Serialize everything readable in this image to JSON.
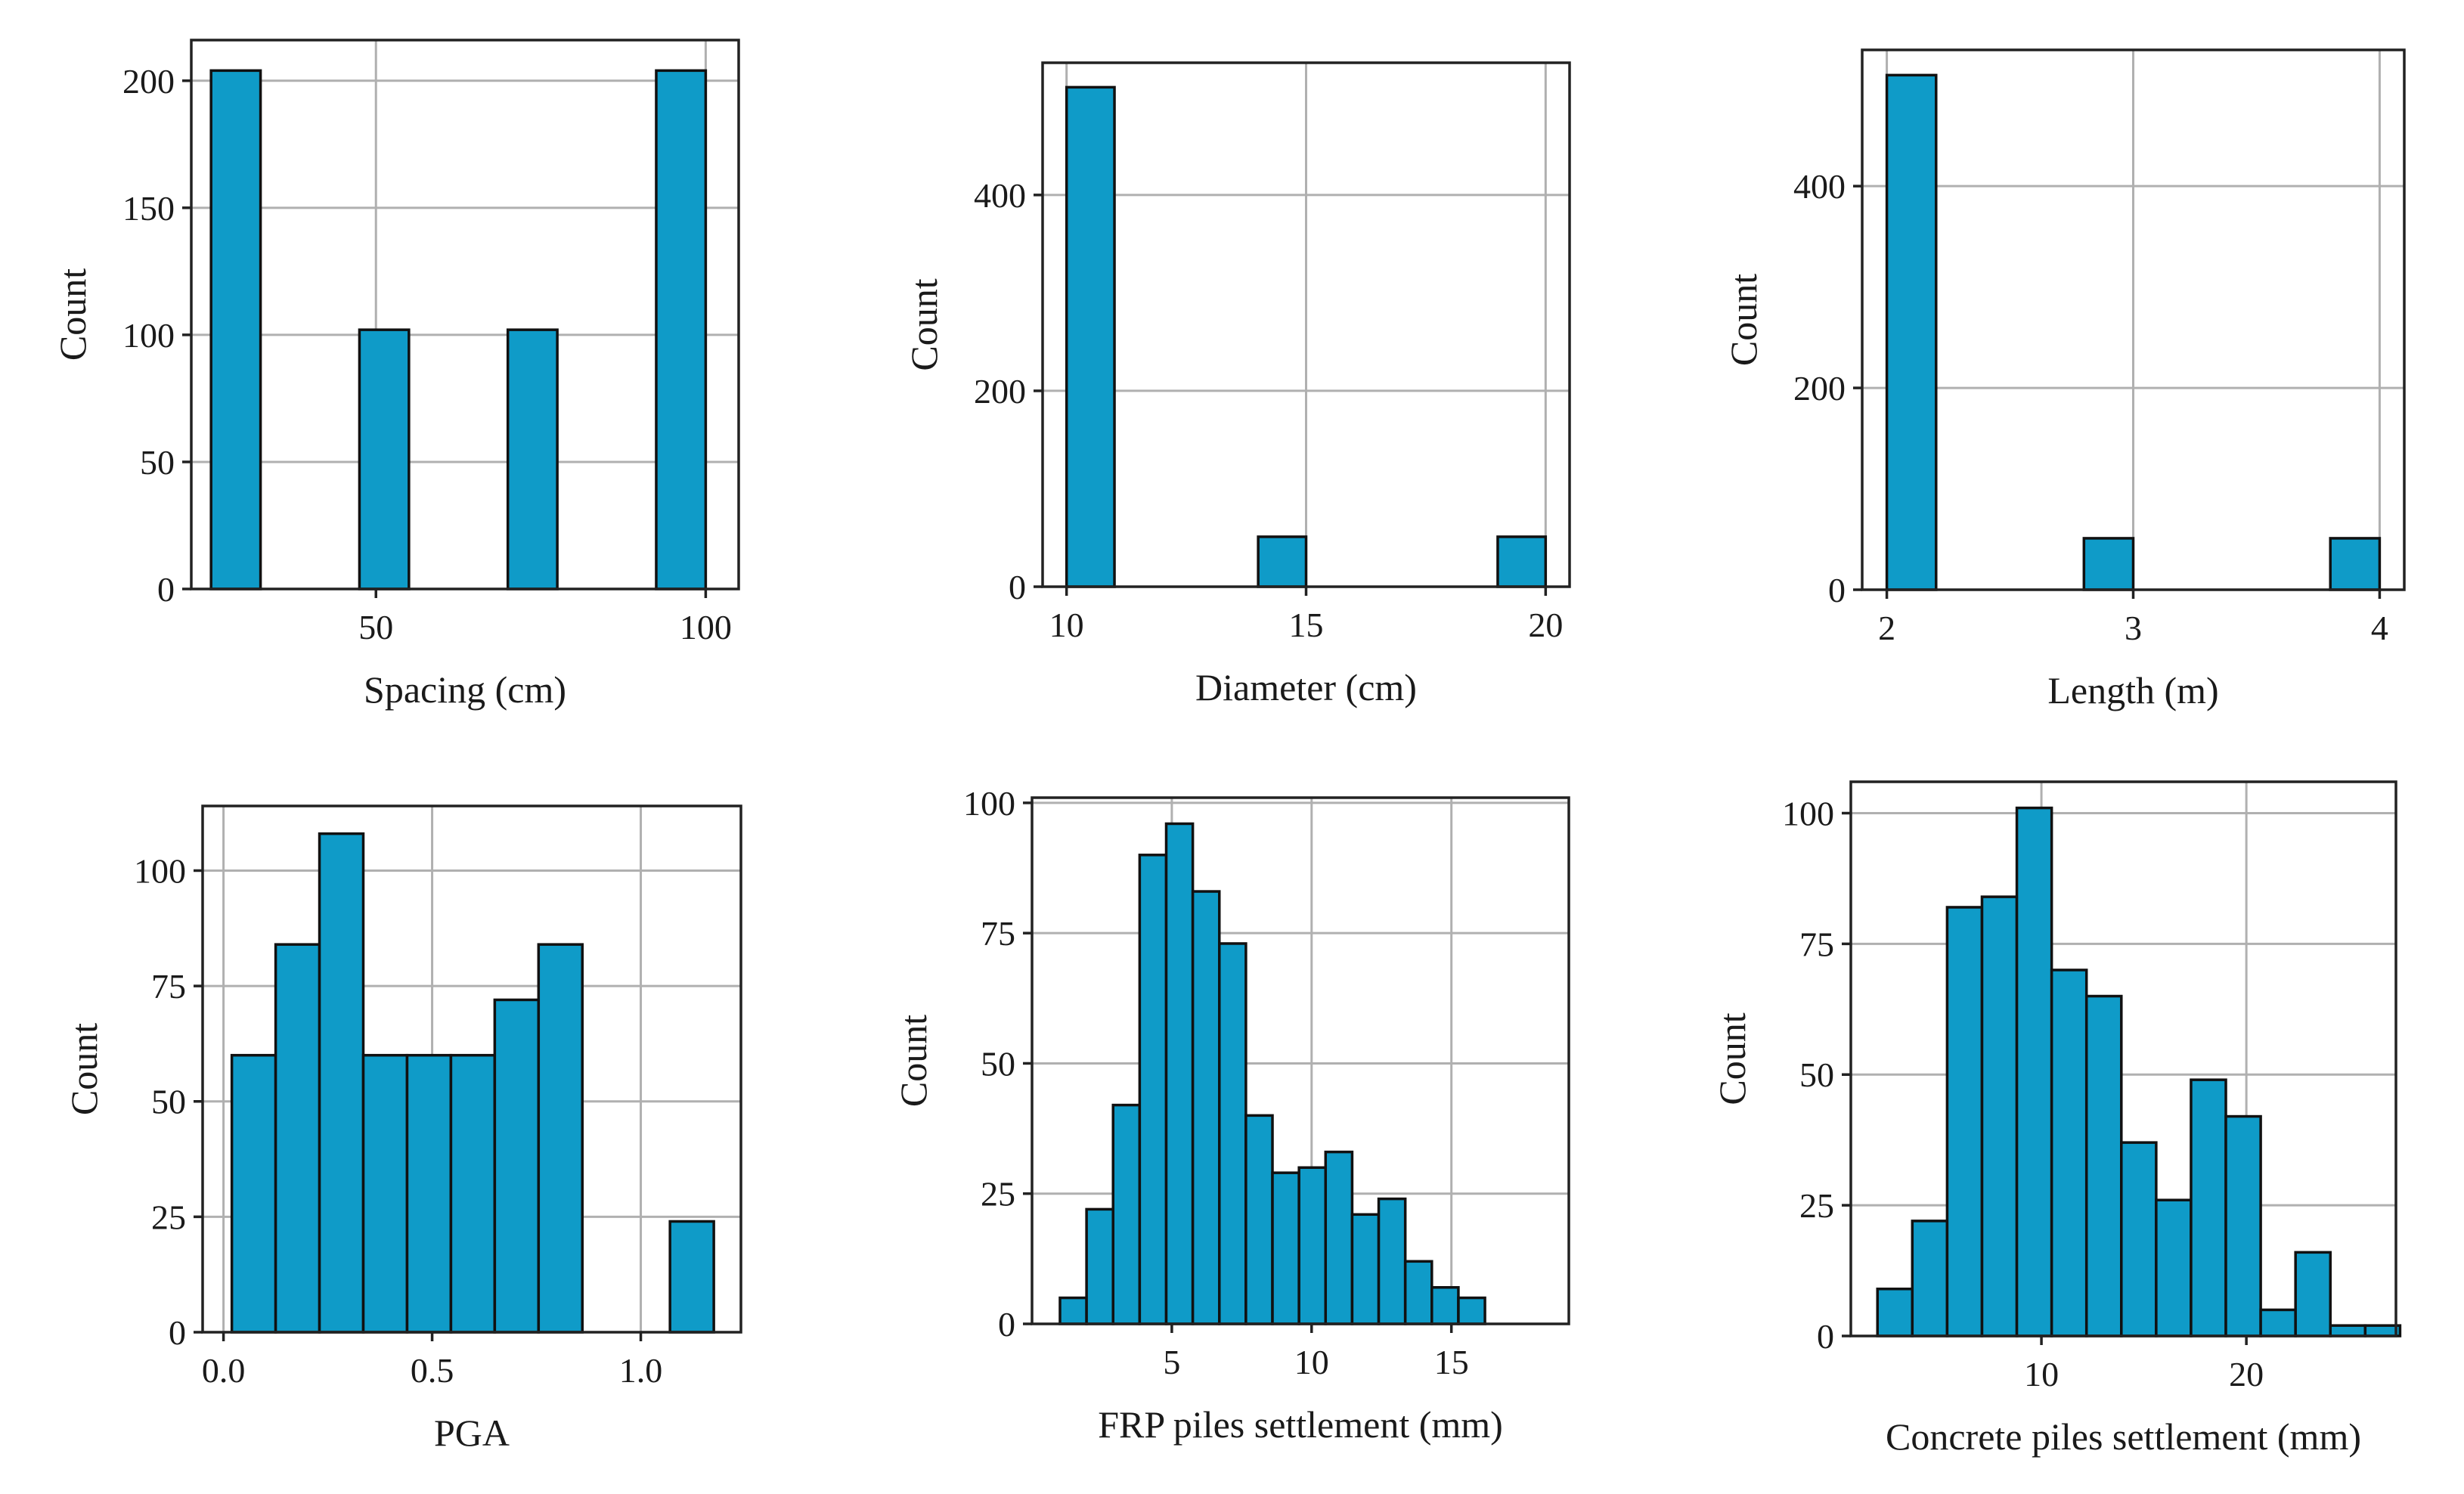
{
  "colors": {
    "bar": "#0f9bc8",
    "edge": "#111111",
    "grid": "#b0b0b0"
  },
  "chart_data": [
    {
      "type": "bar",
      "xlabel": "Spacing (cm)",
      "ylabel": "Count",
      "xlim": [
        22,
        105
      ],
      "ylim": [
        0,
        216
      ],
      "xticks": [
        50,
        100
      ],
      "yticks": [
        0,
        50,
        100,
        150,
        200
      ],
      "grid": true,
      "bins": [
        {
          "x0": 25,
          "x1": 32.5,
          "count": 204
        },
        {
          "x0": 47.5,
          "x1": 55,
          "count": 102
        },
        {
          "x0": 70,
          "x1": 77.5,
          "count": 102
        },
        {
          "x0": 92.5,
          "x1": 100,
          "count": 204
        }
      ]
    },
    {
      "type": "bar",
      "xlabel": "Diameter (cm)",
      "ylabel": "Count",
      "xlim": [
        9.5,
        20.5
      ],
      "ylim": [
        0,
        535
      ],
      "xticks": [
        10,
        15,
        20
      ],
      "yticks": [
        0,
        200,
        400
      ],
      "grid": true,
      "bins": [
        {
          "x0": 10,
          "x1": 11,
          "count": 510
        },
        {
          "x0": 14,
          "x1": 15,
          "count": 51
        },
        {
          "x0": 19,
          "x1": 20,
          "count": 51
        }
      ]
    },
    {
      "type": "bar",
      "xlabel": "Length (m)",
      "ylabel": "Count",
      "xlim": [
        1.9,
        4.1
      ],
      "ylim": [
        0,
        535
      ],
      "xticks": [
        2,
        3,
        4
      ],
      "yticks": [
        0,
        200,
        400
      ],
      "grid": true,
      "bins": [
        {
          "x0": 2.0,
          "x1": 2.2,
          "count": 510
        },
        {
          "x0": 2.8,
          "x1": 3.0,
          "count": 51
        },
        {
          "x0": 3.8,
          "x1": 4.0,
          "count": 51
        }
      ]
    },
    {
      "type": "bar",
      "xlabel": "PGA",
      "ylabel": "Count",
      "xlim": [
        -0.05,
        1.24
      ],
      "ylim": [
        0,
        114
      ],
      "xticks": [
        0.0,
        0.5,
        1.0
      ],
      "yticks": [
        0,
        25,
        50,
        75,
        100
      ],
      "grid": true,
      "bins": [
        {
          "x0": 0.02,
          "x1": 0.125,
          "count": 60
        },
        {
          "x0": 0.125,
          "x1": 0.23,
          "count": 84
        },
        {
          "x0": 0.23,
          "x1": 0.335,
          "count": 108
        },
        {
          "x0": 0.335,
          "x1": 0.44,
          "count": 60
        },
        {
          "x0": 0.44,
          "x1": 0.545,
          "count": 60
        },
        {
          "x0": 0.545,
          "x1": 0.65,
          "count": 60
        },
        {
          "x0": 0.65,
          "x1": 0.755,
          "count": 72
        },
        {
          "x0": 0.755,
          "x1": 0.86,
          "count": 84
        },
        {
          "x0": 1.07,
          "x1": 1.175,
          "count": 24
        }
      ]
    },
    {
      "type": "bar",
      "xlabel": "FRP piles settlement (mm)",
      "ylabel": "Count",
      "xlim": [
        0,
        19.2
      ],
      "ylim": [
        0,
        101
      ],
      "xticks": [
        5,
        10,
        15
      ],
      "yticks": [
        0,
        25,
        50,
        75,
        100
      ],
      "grid": true,
      "bins": [
        {
          "x0": 1.0,
          "x1": 1.95,
          "count": 5
        },
        {
          "x0": 1.95,
          "x1": 2.9,
          "count": 22
        },
        {
          "x0": 2.9,
          "x1": 3.85,
          "count": 42
        },
        {
          "x0": 3.85,
          "x1": 4.8,
          "count": 90
        },
        {
          "x0": 4.8,
          "x1": 5.75,
          "count": 96
        },
        {
          "x0": 5.75,
          "x1": 6.7,
          "count": 83
        },
        {
          "x0": 6.7,
          "x1": 7.65,
          "count": 73
        },
        {
          "x0": 7.65,
          "x1": 8.6,
          "count": 40
        },
        {
          "x0": 8.6,
          "x1": 9.55,
          "count": 29
        },
        {
          "x0": 9.55,
          "x1": 10.5,
          "count": 30
        },
        {
          "x0": 10.5,
          "x1": 11.45,
          "count": 33
        },
        {
          "x0": 11.45,
          "x1": 12.4,
          "count": 21
        },
        {
          "x0": 12.4,
          "x1": 13.35,
          "count": 24
        },
        {
          "x0": 13.35,
          "x1": 14.3,
          "count": 12
        },
        {
          "x0": 14.3,
          "x1": 15.25,
          "count": 7
        },
        {
          "x0": 15.25,
          "x1": 16.2,
          "count": 5
        }
      ]
    },
    {
      "type": "bar",
      "xlabel": "Concrete piles settlement (mm)",
      "ylabel": "Count",
      "xlim": [
        0.7,
        27.3
      ],
      "ylim": [
        0,
        106
      ],
      "xticks": [
        10,
        20
      ],
      "yticks": [
        0,
        25,
        50,
        75,
        100
      ],
      "grid": true,
      "bins": [
        {
          "x0": 2.0,
          "x1": 3.7,
          "count": 9
        },
        {
          "x0": 3.7,
          "x1": 5.4,
          "count": 22
        },
        {
          "x0": 5.4,
          "x1": 7.1,
          "count": 82
        },
        {
          "x0": 7.1,
          "x1": 8.8,
          "count": 84
        },
        {
          "x0": 8.8,
          "x1": 10.5,
          "count": 101
        },
        {
          "x0": 10.5,
          "x1": 12.2,
          "count": 70
        },
        {
          "x0": 12.2,
          "x1": 13.9,
          "count": 65
        },
        {
          "x0": 13.9,
          "x1": 15.6,
          "count": 37
        },
        {
          "x0": 15.6,
          "x1": 17.3,
          "count": 26
        },
        {
          "x0": 17.3,
          "x1": 19.0,
          "count": 49
        },
        {
          "x0": 19.0,
          "x1": 20.7,
          "count": 42
        },
        {
          "x0": 20.7,
          "x1": 22.4,
          "count": 5
        },
        {
          "x0": 22.4,
          "x1": 24.1,
          "count": 16
        },
        {
          "x0": 24.1,
          "x1": 25.8,
          "count": 2
        },
        {
          "x0": 25.8,
          "x1": 27.5,
          "count": 2
        }
      ]
    }
  ]
}
